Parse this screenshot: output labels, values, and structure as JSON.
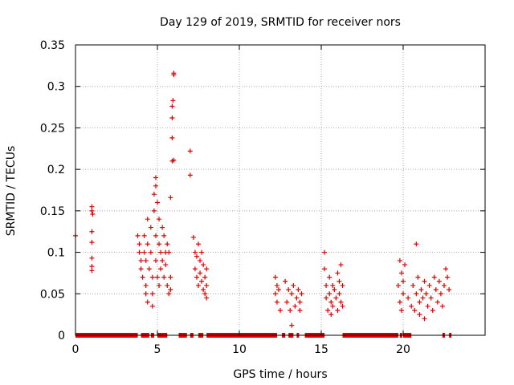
{
  "chart_data": {
    "type": "scatter",
    "title": "Day 129 of 2019, SRMTID for receiver nors",
    "xlabel": "GPS time / hours",
    "ylabel": "SRMTID / TECUs",
    "xlim": [
      0,
      25
    ],
    "ylim": [
      0,
      0.35
    ],
    "xticks": [
      0,
      5,
      10,
      15,
      20
    ],
    "xtick_labels": [
      "0",
      "5",
      "10",
      "15",
      "20"
    ],
    "yticks": [
      0,
      0.05,
      0.1,
      0.15,
      0.2,
      0.25,
      0.3,
      0.35
    ],
    "ytick_labels": [
      "0",
      "0.05",
      "0.1",
      "0.15",
      "0.2",
      "0.25",
      "0.3",
      "0.35"
    ],
    "grid": true,
    "marker": "+",
    "color": "#dd0000",
    "series": [
      {
        "name": "SRMTID",
        "points": [
          [
            0.0,
            0.12
          ],
          [
            1.0,
            0.155
          ],
          [
            1.0,
            0.15
          ],
          [
            1.05,
            0.146
          ],
          [
            1.0,
            0.125
          ],
          [
            1.0,
            0.112
          ],
          [
            1.0,
            0.093
          ],
          [
            1.0,
            0.083
          ],
          [
            1.0,
            0.078
          ],
          [
            3.8,
            0.12
          ],
          [
            3.9,
            0.11
          ],
          [
            3.9,
            0.1
          ],
          [
            4.0,
            0.09
          ],
          [
            4.0,
            0.08
          ],
          [
            4.1,
            0.07
          ],
          [
            4.2,
            0.12
          ],
          [
            4.2,
            0.1
          ],
          [
            4.3,
            0.09
          ],
          [
            4.3,
            0.06
          ],
          [
            4.3,
            0.05
          ],
          [
            4.4,
            0.04
          ],
          [
            4.4,
            0.14
          ],
          [
            4.4,
            0.11
          ],
          [
            4.5,
            0.08
          ],
          [
            4.6,
            0.13
          ],
          [
            4.6,
            0.1
          ],
          [
            4.7,
            0.07
          ],
          [
            4.7,
            0.05
          ],
          [
            4.7,
            0.035
          ],
          [
            4.8,
            0.17
          ],
          [
            4.8,
            0.15
          ],
          [
            4.9,
            0.18
          ],
          [
            4.9,
            0.19
          ],
          [
            4.9,
            0.12
          ],
          [
            4.9,
            0.09
          ],
          [
            5.0,
            0.16
          ],
          [
            5.0,
            0.07
          ],
          [
            5.1,
            0.14
          ],
          [
            5.1,
            0.11
          ],
          [
            5.1,
            0.06
          ],
          [
            5.2,
            0.1
          ],
          [
            5.2,
            0.08
          ],
          [
            5.3,
            0.13
          ],
          [
            5.3,
            0.09
          ],
          [
            5.4,
            0.07
          ],
          [
            5.4,
            0.12
          ],
          [
            5.5,
            0.1
          ],
          [
            5.5,
            0.085
          ],
          [
            5.6,
            0.11
          ],
          [
            5.6,
            0.06
          ],
          [
            5.7,
            0.05
          ],
          [
            5.7,
            0.1
          ],
          [
            5.8,
            0.07
          ],
          [
            5.8,
            0.055
          ],
          [
            5.8,
            0.166
          ],
          [
            5.9,
            0.21
          ],
          [
            5.9,
            0.238
          ],
          [
            5.9,
            0.262
          ],
          [
            5.9,
            0.276
          ],
          [
            5.95,
            0.283
          ],
          [
            6.0,
            0.314
          ],
          [
            6.0,
            0.316
          ],
          [
            6.0,
            0.211
          ],
          [
            7.0,
            0.222
          ],
          [
            7.0,
            0.193
          ],
          [
            7.2,
            0.118
          ],
          [
            7.3,
            0.1
          ],
          [
            7.3,
            0.08
          ],
          [
            7.4,
            0.095
          ],
          [
            7.4,
            0.07
          ],
          [
            7.5,
            0.11
          ],
          [
            7.5,
            0.06
          ],
          [
            7.6,
            0.09
          ],
          [
            7.6,
            0.075
          ],
          [
            7.7,
            0.1
          ],
          [
            7.7,
            0.065
          ],
          [
            7.8,
            0.085
          ],
          [
            7.8,
            0.055
          ],
          [
            7.9,
            0.07
          ],
          [
            7.9,
            0.05
          ],
          [
            8.0,
            0.08
          ],
          [
            8.0,
            0.06
          ],
          [
            8.0,
            0.045
          ],
          [
            12.2,
            0.07
          ],
          [
            12.2,
            0.05
          ],
          [
            12.3,
            0.06
          ],
          [
            12.3,
            0.04
          ],
          [
            12.4,
            0.055
          ],
          [
            12.5,
            0.03
          ],
          [
            12.8,
            0.065
          ],
          [
            12.9,
            0.04
          ],
          [
            13.0,
            0.055
          ],
          [
            13.1,
            0.03
          ],
          [
            13.2,
            0.012
          ],
          [
            13.2,
            0.05
          ],
          [
            13.3,
            0.06
          ],
          [
            13.4,
            0.035
          ],
          [
            13.5,
            0.045
          ],
          [
            13.6,
            0.055
          ],
          [
            13.7,
            0.04
          ],
          [
            13.7,
            0.03
          ],
          [
            13.8,
            0.05
          ],
          [
            15.2,
            0.1
          ],
          [
            15.2,
            0.08
          ],
          [
            15.3,
            0.06
          ],
          [
            15.3,
            0.045
          ],
          [
            15.4,
            0.03
          ],
          [
            15.5,
            0.07
          ],
          [
            15.5,
            0.05
          ],
          [
            15.6,
            0.04
          ],
          [
            15.6,
            0.025
          ],
          [
            15.7,
            0.06
          ],
          [
            15.7,
            0.035
          ],
          [
            15.8,
            0.055
          ],
          [
            15.9,
            0.045
          ],
          [
            16.0,
            0.075
          ],
          [
            16.0,
            0.03
          ],
          [
            16.1,
            0.065
          ],
          [
            16.1,
            0.05
          ],
          [
            16.2,
            0.085
          ],
          [
            16.2,
            0.04
          ],
          [
            16.3,
            0.06
          ],
          [
            16.3,
            0.035
          ],
          [
            19.7,
            0.06
          ],
          [
            19.8,
            0.09
          ],
          [
            19.8,
            0.04
          ],
          [
            19.9,
            0.075
          ],
          [
            19.9,
            0.03
          ],
          [
            20.0,
            0.065
          ],
          [
            20.0,
            0.05
          ],
          [
            20.1,
            0.085
          ],
          [
            20.3,
            0.045
          ],
          [
            20.5,
            0.035
          ],
          [
            20.6,
            0.06
          ],
          [
            20.7,
            0.03
          ],
          [
            20.8,
            0.11
          ],
          [
            20.8,
            0.05
          ],
          [
            20.9,
            0.07
          ],
          [
            21.0,
            0.04
          ],
          [
            21.0,
            0.025
          ],
          [
            21.1,
            0.055
          ],
          [
            21.2,
            0.045
          ],
          [
            21.3,
            0.065
          ],
          [
            21.3,
            0.02
          ],
          [
            21.4,
            0.05
          ],
          [
            21.5,
            0.035
          ],
          [
            21.6,
            0.06
          ],
          [
            21.7,
            0.045
          ],
          [
            21.8,
            0.03
          ],
          [
            21.9,
            0.07
          ],
          [
            22.0,
            0.055
          ],
          [
            22.1,
            0.04
          ],
          [
            22.2,
            0.065
          ],
          [
            22.3,
            0.05
          ],
          [
            22.4,
            0.035
          ],
          [
            22.5,
            0.06
          ],
          [
            22.6,
            0.08
          ],
          [
            22.7,
            0.07
          ],
          [
            22.8,
            0.055
          ]
        ],
        "zero_segments": [
          [
            0.0,
            3.8
          ],
          [
            4.0,
            4.5
          ],
          [
            4.6,
            4.8
          ],
          [
            5.0,
            5.6
          ],
          [
            6.3,
            6.8
          ],
          [
            7.0,
            7.2
          ],
          [
            7.5,
            7.8
          ],
          [
            8.0,
            12.3
          ],
          [
            12.6,
            12.8
          ],
          [
            13.0,
            13.3
          ],
          [
            13.5,
            13.6
          ],
          [
            14.0,
            15.2
          ],
          [
            16.3,
            19.7
          ],
          [
            19.8,
            19.9
          ],
          [
            20.0,
            20.5
          ],
          [
            22.4,
            22.5
          ],
          [
            22.8,
            22.9
          ]
        ]
      }
    ]
  }
}
